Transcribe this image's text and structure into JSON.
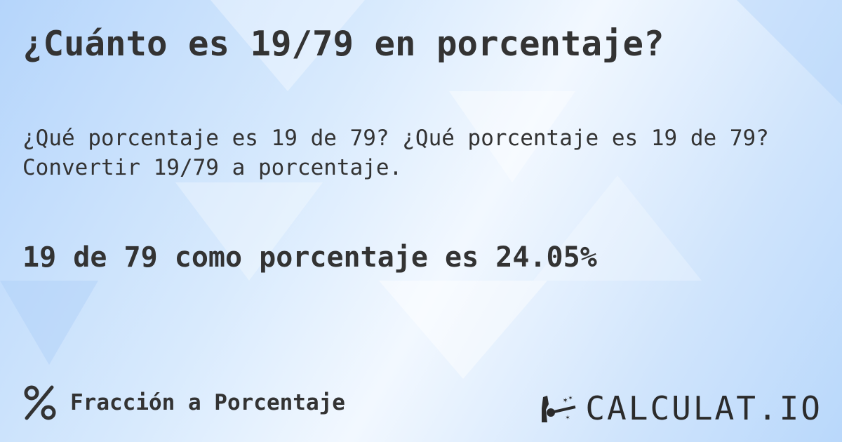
{
  "header": {
    "title": "¿Cuánto es 19/79 en porcentaje?"
  },
  "main": {
    "description": "¿Qué porcentaje es 19 de 79? ¿Qué porcentaje es 19 de 79? Convertir 19/79 a porcentaje.",
    "result": "19 de 79 como porcentaje es 24.05%"
  },
  "footer": {
    "category_icon": "percent-icon",
    "category_label": "Fracción a Porcentaje"
  },
  "brand": {
    "logo_text": "CALCULAT.IO",
    "logo_icon": "magic-wand-hand-icon"
  },
  "colors": {
    "text": "#333333",
    "background": "#cfe4fc"
  }
}
